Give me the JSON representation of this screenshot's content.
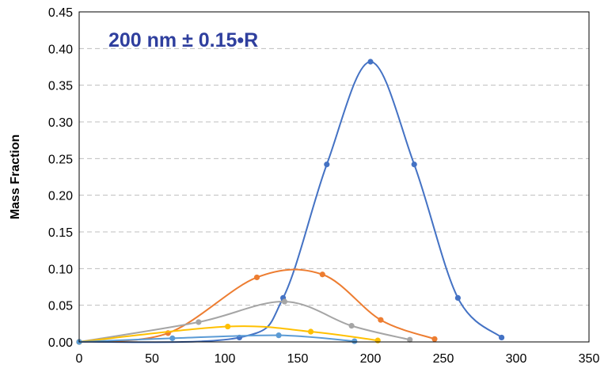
{
  "chart_data": {
    "type": "line",
    "title": "",
    "annotation": "200 nm ± 0.15•R",
    "xlabel": "",
    "ylabel": "Mass Fraction",
    "xlim": [
      0,
      350
    ],
    "ylim": [
      0,
      0.45
    ],
    "x_ticks": [
      "0",
      "50",
      "100",
      "150",
      "200",
      "250",
      "300",
      "350"
    ],
    "y_ticks": [
      "0.00",
      "0.05",
      "0.10",
      "0.15",
      "0.20",
      "0.25",
      "0.30",
      "0.35",
      "0.40",
      "0.45"
    ],
    "grid": true,
    "legend": "none",
    "smooth": true,
    "series": [
      {
        "color": "#4472c4",
        "x": [
          0,
          110,
          140,
          170,
          200,
          230,
          260,
          290
        ],
        "y": [
          0,
          0.006,
          0.06,
          0.242,
          0.382,
          0.242,
          0.06,
          0.006
        ]
      },
      {
        "color": "#ed7d31",
        "x": [
          0,
          61,
          122,
          167,
          207,
          244
        ],
        "y": [
          0,
          0.012,
          0.088,
          0.092,
          0.03,
          0.004
        ]
      },
      {
        "color": "#a5a5a5",
        "x": [
          0,
          82,
          141,
          187,
          227
        ],
        "y": [
          0,
          0.027,
          0.055,
          0.022,
          0.003
        ]
      },
      {
        "color": "#ffc000",
        "x": [
          0,
          102,
          159,
          205
        ],
        "y": [
          0,
          0.021,
          0.014,
          0.002
        ]
      },
      {
        "color": "#5b9bd5",
        "x": [
          0,
          64,
          137,
          189
        ],
        "y": [
          0,
          0.005,
          0.009,
          0.001
        ]
      }
    ]
  }
}
